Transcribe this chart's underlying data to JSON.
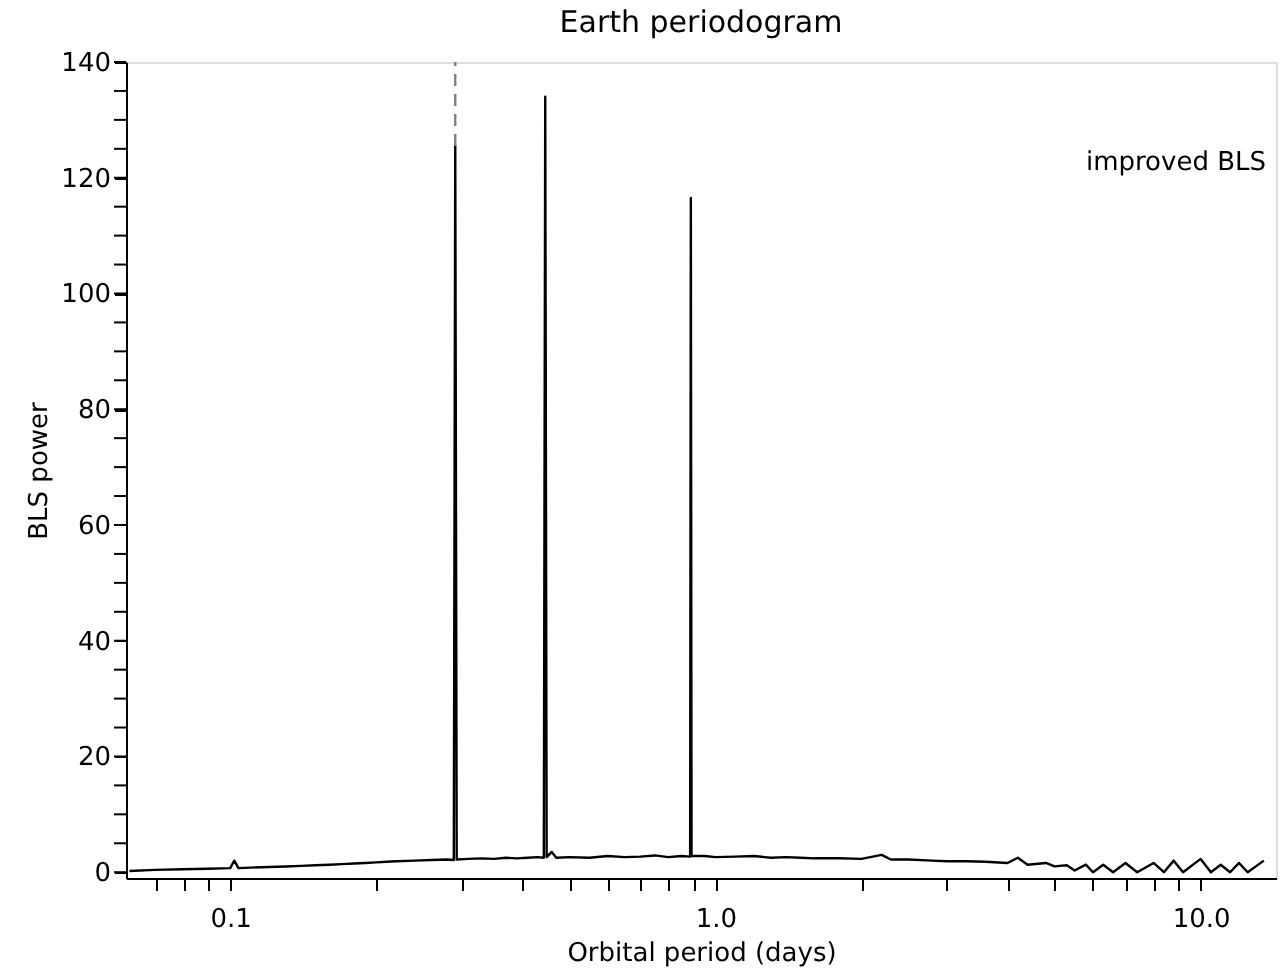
{
  "chart_data": {
    "type": "line",
    "title": "Earth periodogram",
    "xlabel": "Orbital period (days)",
    "ylabel": "BLS power",
    "log": "x",
    "grid": false,
    "xlim": [
      0.061,
      14.3
    ],
    "ylim": [
      -1,
      140
    ],
    "xticks": [
      {
        "value": 0.07,
        "label": null
      },
      {
        "value": 0.08,
        "label": null
      },
      {
        "value": 0.09,
        "label": null
      },
      0.1,
      {
        "value": 0.2,
        "label": null
      },
      {
        "value": 0.3,
        "label": null
      },
      {
        "value": 0.4,
        "label": null
      },
      {
        "value": 0.5,
        "label": null
      },
      {
        "value": 0.6,
        "label": null
      },
      {
        "value": 0.7,
        "label": null
      },
      {
        "value": 0.8,
        "label": null
      },
      {
        "value": 0.9,
        "label": null
      },
      {
        "value": 1,
        "label": "1.0"
      },
      {
        "value": 2,
        "label": null
      },
      {
        "value": 3,
        "label": null
      },
      {
        "value": 4,
        "label": null
      },
      {
        "value": 5,
        "label": null
      },
      {
        "value": 6,
        "label": null
      },
      {
        "value": 7,
        "label": null
      },
      {
        "value": 8,
        "label": null
      },
      {
        "value": 9,
        "label": null
      },
      {
        "value": 10,
        "label": "10.0"
      }
    ],
    "yticks": [
      0,
      {
        "value": 5,
        "label": null
      },
      {
        "value": 10,
        "label": null
      },
      {
        "value": 15,
        "label": null
      },
      20,
      {
        "value": 25,
        "label": null
      },
      {
        "value": 30,
        "label": null
      },
      {
        "value": 35,
        "label": null
      },
      40,
      {
        "value": 45,
        "label": null
      },
      {
        "value": 50,
        "label": null
      },
      {
        "value": 55,
        "label": null
      },
      60,
      {
        "value": 65,
        "label": null
      },
      {
        "value": 70,
        "label": null
      },
      {
        "value": 75,
        "label": null
      },
      80,
      {
        "value": 85,
        "label": null
      },
      {
        "value": 90,
        "label": null
      },
      {
        "value": 95,
        "label": null
      },
      100,
      {
        "value": 105,
        "label": null
      },
      {
        "value": 110,
        "label": null
      },
      {
        "value": 115,
        "label": null
      },
      120,
      {
        "value": 125,
        "label": null
      },
      {
        "value": 130,
        "label": null
      },
      {
        "value": 135,
        "label": null
      },
      140
    ],
    "annotations": [
      "improved BLS"
    ],
    "series": [
      {
        "type": "line",
        "color": "#000000",
        "line_style": "solid",
        "x": [
          0.062,
          0.07,
          0.08,
          0.09,
          0.1,
          0.102,
          0.104,
          0.11,
          0.12,
          0.13,
          0.14,
          0.15,
          0.16,
          0.17,
          0.18,
          0.19,
          0.2,
          0.21,
          0.22,
          0.24,
          0.26,
          0.28,
          0.289,
          0.291,
          0.293,
          0.31,
          0.33,
          0.35,
          0.37,
          0.39,
          0.41,
          0.43,
          0.443,
          0.446,
          0.449,
          0.46,
          0.47,
          0.5,
          0.55,
          0.6,
          0.65,
          0.7,
          0.75,
          0.8,
          0.85,
          0.887,
          0.89,
          0.893,
          0.95,
          1.0,
          1.1,
          1.2,
          1.3,
          1.4,
          1.5,
          1.6,
          1.8,
          2.0,
          2.2,
          2.3,
          2.5,
          2.8,
          3.0,
          3.3,
          3.6,
          4.0,
          4.2,
          4.4,
          4.8,
          5.0,
          5.3,
          5.5,
          5.8,
          6.0,
          6.3,
          6.6,
          7.0,
          7.4,
          8.0,
          8.4,
          8.8,
          9.2,
          10.0,
          10.5,
          11.0,
          11.5,
          12.0,
          12.5,
          13.5
        ],
        "values": [
          0.2,
          0.4,
          0.5,
          0.6,
          0.7,
          2.0,
          0.7,
          0.8,
          0.9,
          1.0,
          1.1,
          1.2,
          1.3,
          1.4,
          1.5,
          1.6,
          1.7,
          1.8,
          1.9,
          2.0,
          2.1,
          2.2,
          2.1,
          125.5,
          2.2,
          2.3,
          2.4,
          2.3,
          2.5,
          2.4,
          2.5,
          2.6,
          2.5,
          134,
          2.6,
          3.5,
          2.5,
          2.6,
          2.5,
          2.8,
          2.6,
          2.7,
          2.9,
          2.6,
          2.8,
          2.7,
          116.5,
          2.8,
          2.8,
          2.6,
          2.7,
          2.8,
          2.5,
          2.6,
          2.5,
          2.4,
          2.4,
          2.3,
          3.0,
          2.2,
          2.2,
          2.0,
          1.9,
          1.9,
          1.8,
          1.6,
          2.5,
          1.3,
          1.6,
          1.0,
          1.2,
          0.3,
          1.3,
          0,
          1.3,
          0,
          1.6,
          0,
          1.6,
          0,
          2.0,
          0,
          2.3,
          0,
          1.3,
          0,
          1.6,
          0,
          2.0
        ]
      },
      {
        "type": "line",
        "color": "#808080",
        "line_style": "dashed",
        "x": [
          0.291,
          0.291
        ],
        "values": [
          125.5,
          140
        ]
      }
    ]
  }
}
